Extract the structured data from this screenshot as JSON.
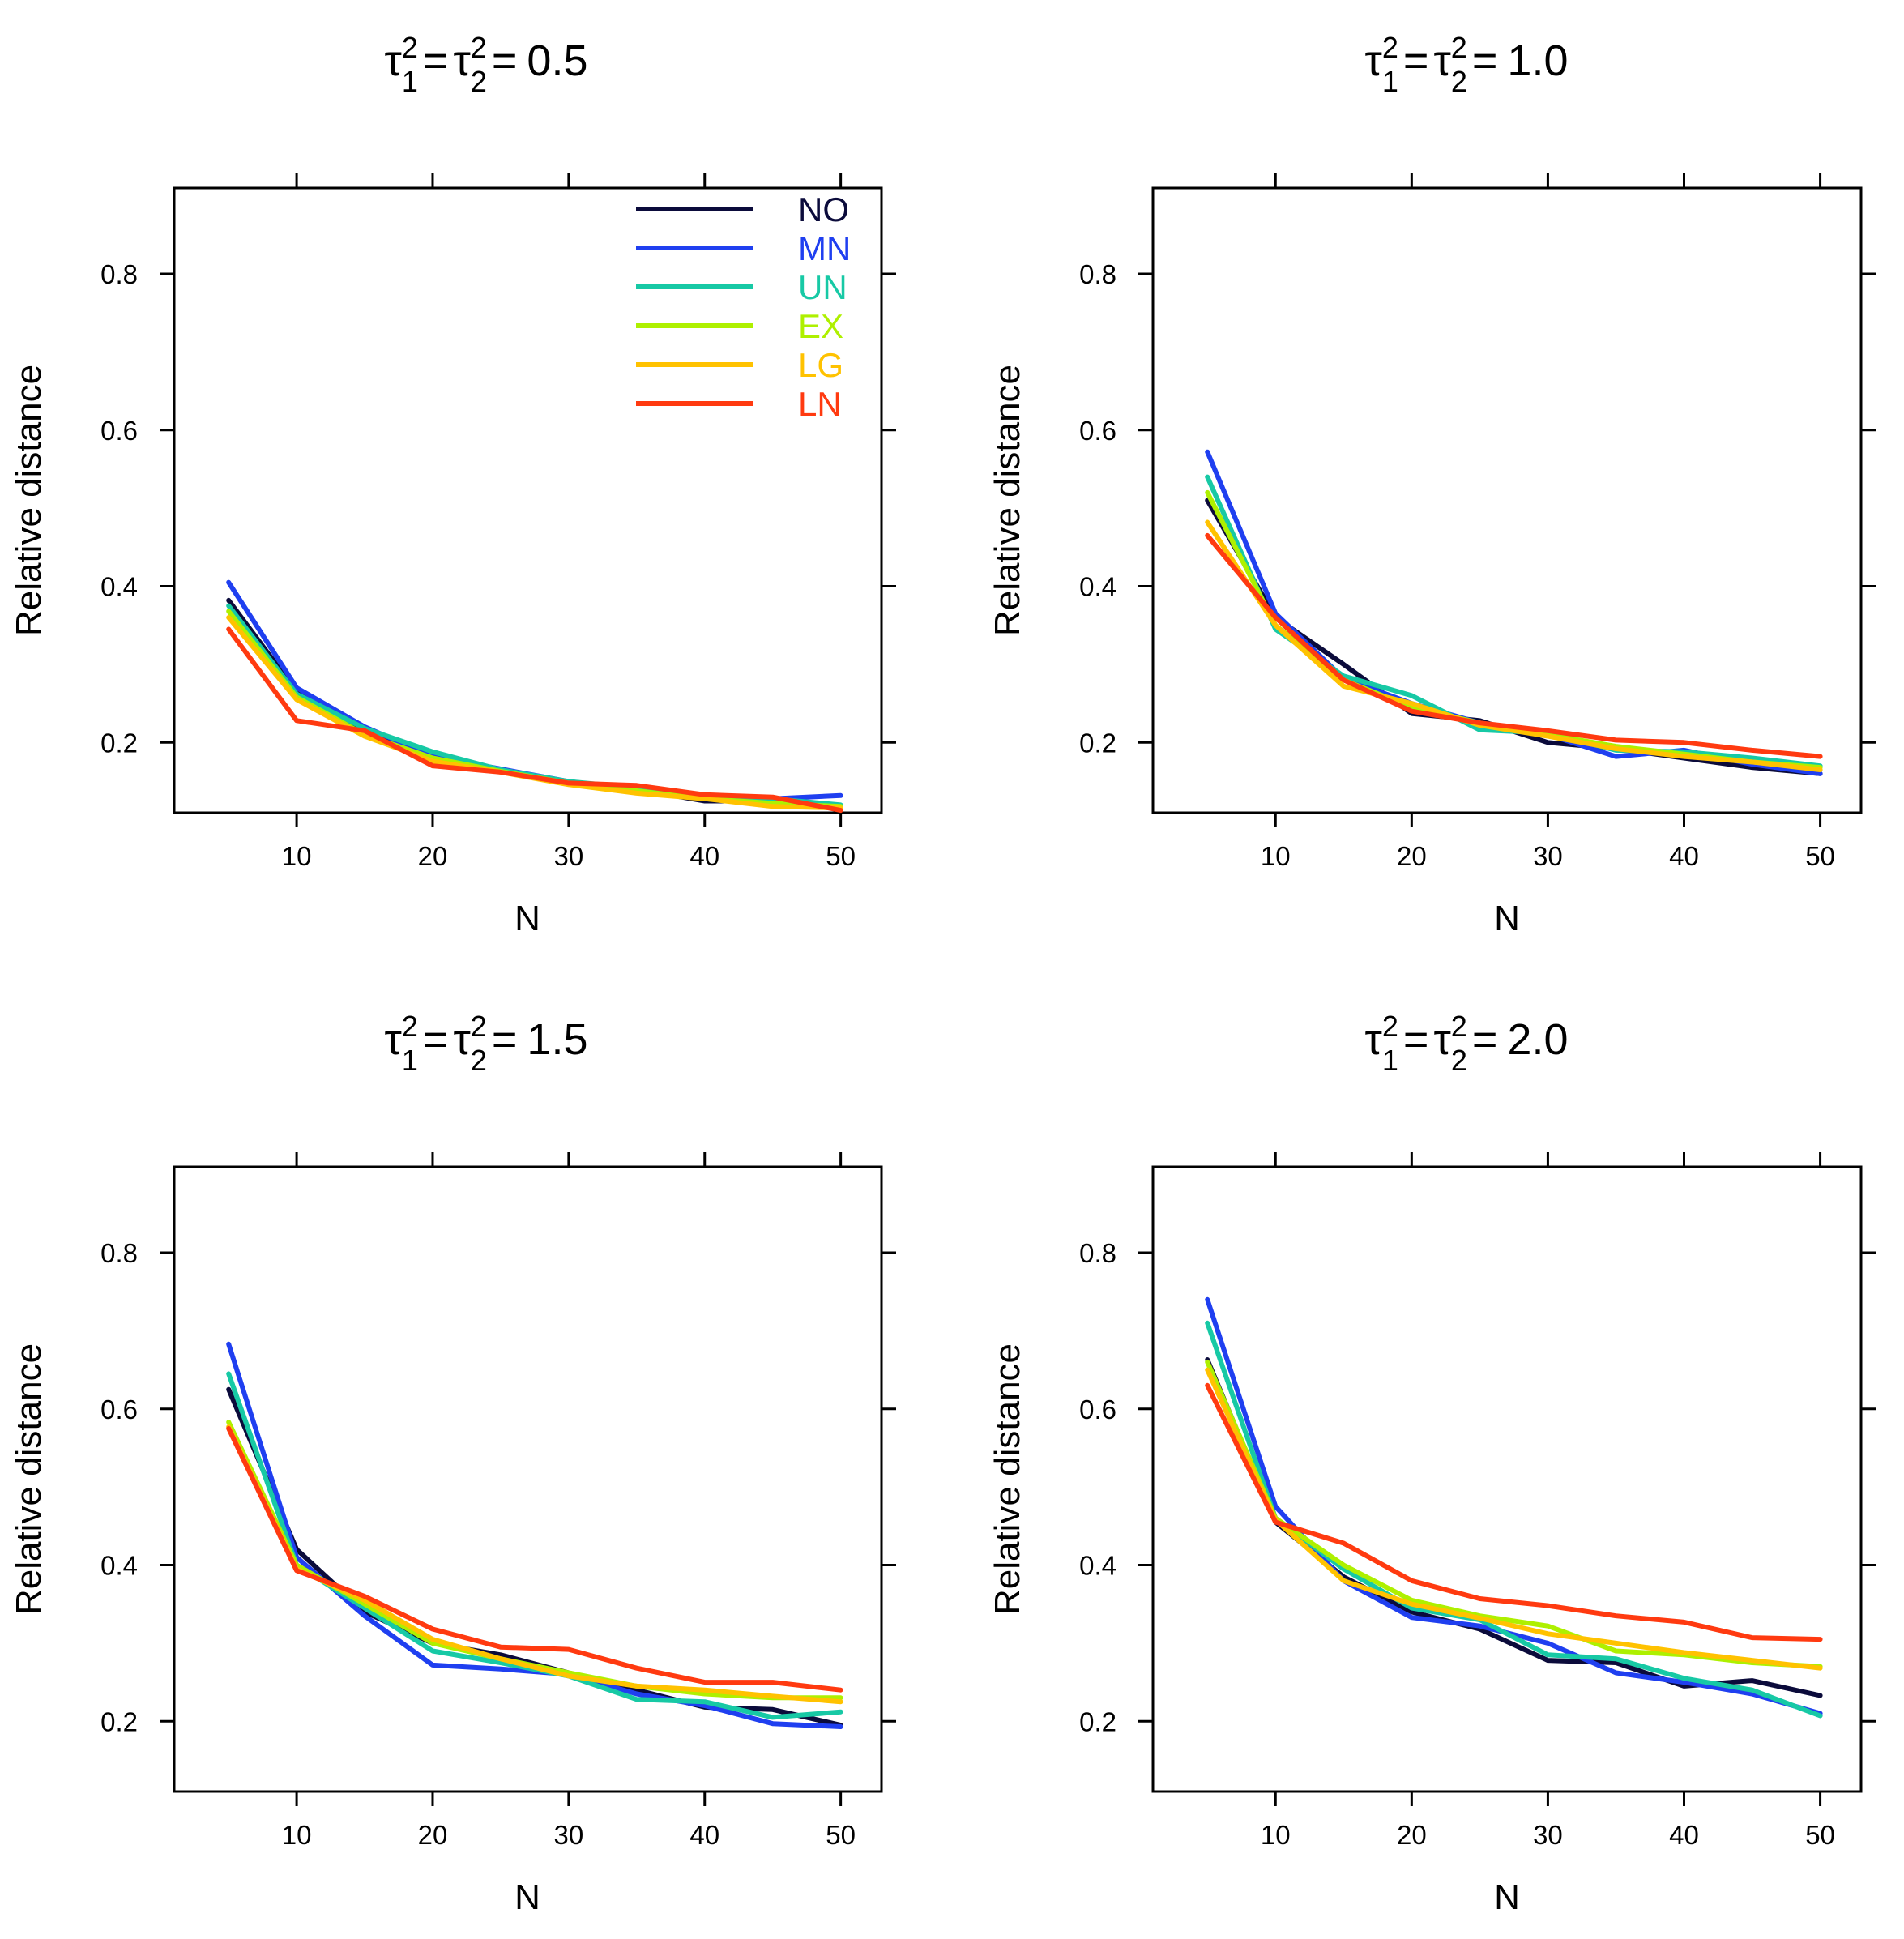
{
  "chart_data": [
    {
      "type": "line",
      "title": "τ1² = τ2² = 0.5",
      "title_parts": {
        "tau": "τ",
        "sub1": "1",
        "sub2": "2",
        "sup": "2",
        "eq": "=",
        "value": "0.5"
      },
      "xlabel": "N",
      "ylabel": "Relative distance",
      "xlim": [
        1,
        53
      ],
      "ylim": [
        0.11,
        0.91
      ],
      "xticks": [
        10,
        20,
        30,
        40,
        50
      ],
      "yticks": [
        0.2,
        0.4,
        0.6,
        0.8
      ],
      "x": [
        5,
        10,
        15,
        20,
        25,
        30,
        35,
        40,
        45,
        50
      ],
      "series": [
        {
          "name": "NO",
          "color": "#0b0b3b",
          "values": [
            0.382,
            0.265,
            0.215,
            0.18,
            0.165,
            0.148,
            0.14,
            0.125,
            0.125,
            0.118
          ]
        },
        {
          "name": "MN",
          "color": "#1f3ff0",
          "values": [
            0.405,
            0.27,
            0.22,
            0.182,
            0.166,
            0.15,
            0.14,
            0.13,
            0.128,
            0.132
          ]
        },
        {
          "name": "UN",
          "color": "#17c9a5",
          "values": [
            0.375,
            0.262,
            0.218,
            0.188,
            0.165,
            0.15,
            0.142,
            0.13,
            0.128,
            0.12
          ]
        },
        {
          "name": "EX",
          "color": "#aef000",
          "values": [
            0.368,
            0.258,
            0.21,
            0.18,
            0.163,
            0.148,
            0.138,
            0.128,
            0.122,
            0.118
          ]
        },
        {
          "name": "LG",
          "color": "#ffc200",
          "values": [
            0.36,
            0.255,
            0.208,
            0.176,
            0.162,
            0.146,
            0.135,
            0.128,
            0.118,
            0.116
          ]
        },
        {
          "name": "LN",
          "color": "#ff3a10",
          "values": [
            0.345,
            0.228,
            0.215,
            0.17,
            0.162,
            0.148,
            0.145,
            0.133,
            0.13,
            0.113
          ]
        }
      ],
      "legend": {
        "placement": "top-right",
        "entries": [
          "NO",
          "MN",
          "UN",
          "EX",
          "LG",
          "LN"
        ]
      }
    },
    {
      "type": "line",
      "title": "τ1² = τ2² = 1.0",
      "title_parts": {
        "tau": "τ",
        "sub1": "1",
        "sub2": "2",
        "sup": "2",
        "eq": "=",
        "value": "1.0"
      },
      "xlabel": "N",
      "ylabel": "Relative distance",
      "xlim": [
        1,
        53
      ],
      "ylim": [
        0.11,
        0.91
      ],
      "xticks": [
        10,
        20,
        30,
        40,
        50
      ],
      "yticks": [
        0.2,
        0.4,
        0.6,
        0.8
      ],
      "x": [
        5,
        10,
        15,
        20,
        25,
        30,
        35,
        40,
        45,
        50
      ],
      "series": [
        {
          "name": "NO",
          "color": "#0b0b3b",
          "values": [
            0.51,
            0.36,
            0.3,
            0.237,
            0.228,
            0.2,
            0.192,
            0.18,
            0.168,
            0.16
          ]
        },
        {
          "name": "MN",
          "color": "#1f3ff0",
          "values": [
            0.572,
            0.365,
            0.282,
            0.25,
            0.225,
            0.21,
            0.182,
            0.19,
            0.172,
            0.16
          ]
        },
        {
          "name": "UN",
          "color": "#17c9a5",
          "values": [
            0.54,
            0.345,
            0.285,
            0.26,
            0.216,
            0.212,
            0.19,
            0.188,
            0.18,
            0.17
          ]
        },
        {
          "name": "EX",
          "color": "#aef000",
          "values": [
            0.52,
            0.35,
            0.28,
            0.245,
            0.225,
            0.21,
            0.195,
            0.185,
            0.175,
            0.168
          ]
        },
        {
          "name": "LG",
          "color": "#ffc200",
          "values": [
            0.482,
            0.35,
            0.272,
            0.25,
            0.222,
            0.208,
            0.192,
            0.182,
            0.175,
            0.165
          ]
        },
        {
          "name": "LN",
          "color": "#ff3a10",
          "values": [
            0.465,
            0.36,
            0.28,
            0.24,
            0.225,
            0.215,
            0.203,
            0.2,
            0.19,
            0.182
          ]
        }
      ]
    },
    {
      "type": "line",
      "title": "τ1² = τ2² = 1.5",
      "title_parts": {
        "tau": "τ",
        "sub1": "1",
        "sub2": "2",
        "sup": "2",
        "eq": "=",
        "value": "1.5"
      },
      "xlabel": "N",
      "ylabel": "Relative distance",
      "xlim": [
        1,
        53
      ],
      "ylim": [
        0.11,
        0.91
      ],
      "xticks": [
        10,
        20,
        30,
        40,
        50
      ],
      "yticks": [
        0.2,
        0.4,
        0.6,
        0.8
      ],
      "x": [
        5,
        10,
        15,
        20,
        25,
        30,
        35,
        40,
        45,
        50
      ],
      "series": [
        {
          "name": "NO",
          "color": "#0b0b3b",
          "values": [
            0.625,
            0.42,
            0.34,
            0.3,
            0.285,
            0.262,
            0.24,
            0.218,
            0.215,
            0.195
          ]
        },
        {
          "name": "MN",
          "color": "#1f3ff0",
          "values": [
            0.683,
            0.41,
            0.335,
            0.272,
            0.267,
            0.26,
            0.235,
            0.22,
            0.197,
            0.193
          ]
        },
        {
          "name": "UN",
          "color": "#17c9a5",
          "values": [
            0.645,
            0.4,
            0.345,
            0.29,
            0.275,
            0.258,
            0.228,
            0.225,
            0.205,
            0.212
          ]
        },
        {
          "name": "EX",
          "color": "#aef000",
          "values": [
            0.583,
            0.4,
            0.35,
            0.3,
            0.28,
            0.262,
            0.245,
            0.235,
            0.23,
            0.23
          ]
        },
        {
          "name": "LG",
          "color": "#ffc200",
          "values": [
            0.577,
            0.395,
            0.355,
            0.305,
            0.28,
            0.258,
            0.245,
            0.24,
            0.232,
            0.225
          ]
        },
        {
          "name": "LN",
          "color": "#ff3a10",
          "values": [
            0.575,
            0.393,
            0.36,
            0.318,
            0.295,
            0.292,
            0.268,
            0.25,
            0.25,
            0.24
          ]
        }
      ]
    },
    {
      "type": "line",
      "title": "τ1² = τ2² = 2.0",
      "title_parts": {
        "tau": "τ",
        "sub1": "1",
        "sub2": "2",
        "sup": "2",
        "eq": "=",
        "value": "2.0"
      },
      "xlabel": "N",
      "ylabel": "Relative distance",
      "xlim": [
        1,
        53
      ],
      "ylim": [
        0.11,
        0.91
      ],
      "xticks": [
        10,
        20,
        30,
        40,
        50
      ],
      "yticks": [
        0.2,
        0.4,
        0.6,
        0.8
      ],
      "x": [
        5,
        10,
        15,
        20,
        25,
        30,
        35,
        40,
        45,
        50
      ],
      "series": [
        {
          "name": "NO",
          "color": "#0b0b3b",
          "values": [
            0.663,
            0.455,
            0.385,
            0.34,
            0.318,
            0.278,
            0.275,
            0.245,
            0.252,
            0.233
          ]
        },
        {
          "name": "MN",
          "color": "#1f3ff0",
          "values": [
            0.74,
            0.475,
            0.38,
            0.333,
            0.322,
            0.3,
            0.262,
            0.25,
            0.235,
            0.21
          ]
        },
        {
          "name": "UN",
          "color": "#17c9a5",
          "values": [
            0.71,
            0.46,
            0.395,
            0.345,
            0.33,
            0.285,
            0.28,
            0.255,
            0.24,
            0.207
          ]
        },
        {
          "name": "EX",
          "color": "#aef000",
          "values": [
            0.66,
            0.46,
            0.4,
            0.355,
            0.335,
            0.322,
            0.29,
            0.285,
            0.275,
            0.27
          ]
        },
        {
          "name": "LG",
          "color": "#ffc200",
          "values": [
            0.65,
            0.458,
            0.38,
            0.35,
            0.332,
            0.312,
            0.3,
            0.288,
            0.278,
            0.268
          ]
        },
        {
          "name": "LN",
          "color": "#ff3a10",
          "values": [
            0.63,
            0.455,
            0.428,
            0.38,
            0.357,
            0.348,
            0.335,
            0.327,
            0.307,
            0.305
          ]
        }
      ]
    }
  ]
}
